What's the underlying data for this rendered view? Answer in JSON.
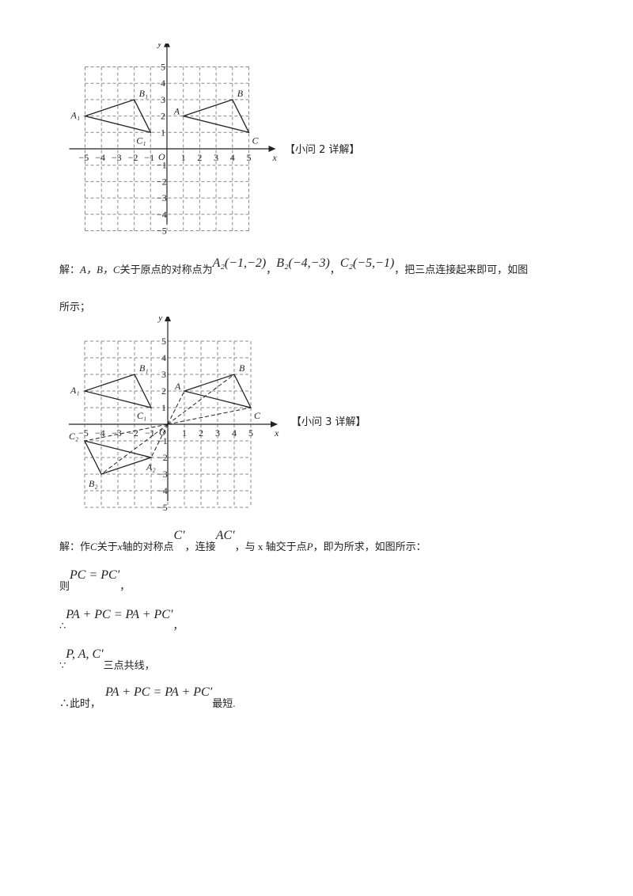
{
  "graphs": [
    {
      "caption": "【小问 2 详解】",
      "axis": {
        "x_label": "x",
        "y_label": "y",
        "origin_label": "O",
        "range": [
          -5,
          5
        ],
        "grid": "dashed"
      },
      "polygons": [
        {
          "points": [
            [
              1,
              2
            ],
            [
              4,
              3
            ],
            [
              5,
              1
            ]
          ],
          "labels": [
            "A",
            "B",
            "C"
          ]
        },
        {
          "points": [
            [
              -5,
              2
            ],
            [
              -2,
              3
            ],
            [
              -1,
              1
            ]
          ],
          "labels": [
            "A₁",
            "B₁",
            "C₁"
          ]
        }
      ],
      "dashed_segments": []
    },
    {
      "caption": "【小问 3 详解】",
      "axis": {
        "x_label": "x",
        "y_label": "y",
        "origin_label": "O",
        "range": [
          -5,
          5
        ],
        "grid": "dashed"
      },
      "polygons": [
        {
          "points": [
            [
              1,
              2
            ],
            [
              4,
              3
            ],
            [
              5,
              1
            ]
          ],
          "labels": [
            "A",
            "B",
            "C"
          ]
        },
        {
          "points": [
            [
              -5,
              2
            ],
            [
              -2,
              3
            ],
            [
              -1,
              1
            ]
          ],
          "labels": [
            "A₁",
            "B₁",
            "C₁"
          ]
        },
        {
          "points": [
            [
              -1,
              -2
            ],
            [
              -4,
              -3
            ],
            [
              -5,
              -1
            ]
          ],
          "labels": [
            "A₂",
            "B₂",
            "C₂"
          ]
        }
      ],
      "dashed_segments": [
        [
          [
            0,
            0
          ],
          [
            1,
            2
          ]
        ],
        [
          [
            0,
            0
          ],
          [
            4,
            3
          ]
        ],
        [
          [
            0,
            0
          ],
          [
            5,
            1
          ]
        ],
        [
          [
            0,
            0
          ],
          [
            -1,
            -2
          ]
        ],
        [
          [
            0,
            0
          ],
          [
            -4,
            -3
          ]
        ],
        [
          [
            0,
            0
          ],
          [
            -5,
            -1
          ]
        ]
      ]
    }
  ],
  "text": {
    "p1_a": "解：",
    "p1_abc": "A，B，C",
    "p1_b": "关于原点的对称点为",
    "p1_f1": "A₂(−1,−2)",
    "p1_f2": "B₂(−4,−3)",
    "p1_f3": "C₂(−5,−1)",
    "p1_sep": "，",
    "p1_c": "，把三点连接起来即可，如图",
    "p1_d": "所示；",
    "p2_a": "解：作",
    "p2_c": "C",
    "p2_b": "关于",
    "p2_x": "x",
    "p2_b2": "轴的对称点",
    "p2_f1": "C′",
    "p2_d": "，连接",
    "p2_f2": "AC′",
    "p2_e": "，与 x 轴交于点",
    "p2_p": "P",
    "p2_g": "，即为所求，如图所示：",
    "l3_a": "则",
    "l3_f": "PC = PC′",
    "l3_b": "，",
    "l4_a": "∴",
    "l4_f": "PA + PC = PA + PC′",
    "l4_b": "，",
    "l5_a": "∵",
    "l5_f": "P, A, C′",
    "l5_b": "三点共线，",
    "l6_a": "∴此时，",
    "l6_f": "PA + PC = PA + PC′",
    "l6_b": "最短."
  }
}
